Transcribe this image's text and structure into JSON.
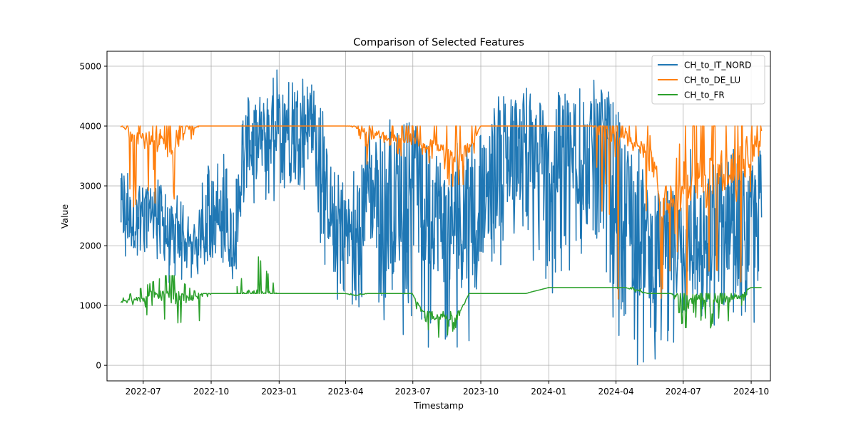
{
  "chart_data": {
    "type": "line",
    "title": "Comparison of Selected Features",
    "xlabel": "Timestamp",
    "ylabel": "Value",
    "x_tick_labels": [
      "2022-07",
      "2022-10",
      "2023-01",
      "2023-04",
      "2023-07",
      "2023-10",
      "2024-01",
      "2024-04",
      "2024-07",
      "2024-10"
    ],
    "x_ticks": [
      "2022-07-01",
      "2022-10-01",
      "2023-01-01",
      "2023-04-01",
      "2023-07-01",
      "2023-10-01",
      "2024-01-01",
      "2024-04-01",
      "2024-07-01",
      "2024-10-01"
    ],
    "xlim": [
      "2022-05-13",
      "2024-10-27"
    ],
    "ylim": [
      -260,
      5250
    ],
    "y_ticks": [
      0,
      1000,
      2000,
      3000,
      4000,
      5000
    ],
    "y_tick_labels": [
      "0",
      "1000",
      "2000",
      "3000",
      "4000",
      "5000"
    ],
    "grid": true,
    "legend_position": "upper right",
    "series": [
      {
        "name": "CH_to_IT_NORD",
        "color": "#1f77b4",
        "x": [
          "2022-06-01",
          "2022-06-15",
          "2022-07-01",
          "2022-07-15",
          "2022-08-01",
          "2022-08-15",
          "2022-09-01",
          "2022-09-15",
          "2022-10-01",
          "2022-10-15",
          "2022-11-01",
          "2022-11-15",
          "2022-12-01",
          "2022-12-15",
          "2023-01-01",
          "2023-01-15",
          "2023-02-01",
          "2023-02-15",
          "2023-03-01",
          "2023-03-15",
          "2023-04-01",
          "2023-04-15",
          "2023-05-01",
          "2023-05-15",
          "2023-06-01",
          "2023-06-15",
          "2023-07-01",
          "2023-07-15",
          "2023-08-01",
          "2023-08-15",
          "2023-09-01",
          "2023-09-15",
          "2023-10-01",
          "2023-10-15",
          "2023-11-01",
          "2023-11-15",
          "2023-12-01",
          "2023-12-15",
          "2024-01-01",
          "2024-01-15",
          "2024-02-01",
          "2024-02-15",
          "2024-03-01",
          "2024-03-15",
          "2024-04-01",
          "2024-04-15",
          "2024-05-01",
          "2024-05-15",
          "2024-06-01",
          "2024-06-15",
          "2024-07-01",
          "2024-07-15",
          "2024-08-01",
          "2024-08-15",
          "2024-09-01",
          "2024-09-15",
          "2024-10-01",
          "2024-10-15"
        ],
        "y": [
          2600,
          2400,
          2500,
          2700,
          2200,
          2100,
          2000,
          2200,
          2600,
          2300,
          2200,
          3500,
          3700,
          3800,
          4000,
          4200,
          4100,
          3900,
          3200,
          2500,
          2300,
          2100,
          3000,
          2700,
          2600,
          2800,
          3000,
          2600,
          2700,
          2300,
          2400,
          2200,
          2700,
          3000,
          3300,
          3600,
          3800,
          3300,
          3200,
          3600,
          3500,
          3400,
          3500,
          3700,
          3200,
          2600,
          2200,
          2000,
          1900,
          2100,
          2000,
          2300,
          2000,
          2300,
          2500,
          2400,
          2300,
          2500
        ],
        "y_min": [
          1800,
          1500,
          1800,
          2000,
          1200,
          1300,
          1400,
          1500,
          1800,
          1400,
          1300,
          2500,
          2600,
          2500,
          2800,
          2900,
          3000,
          2700,
          1800,
          1200,
          900,
          800,
          1300,
          900,
          500,
          400,
          700,
          200,
          0,
          200,
          300,
          400,
          900,
          1200,
          1800,
          2000,
          2300,
          1500,
          900,
          1400,
          1500,
          1800,
          1800,
          2000,
          400,
          0,
          0,
          0,
          0,
          0,
          300,
          800,
          500,
          600,
          700,
          700,
          500,
          0
        ],
        "y_max": [
          3600,
          3200,
          3100,
          3200,
          3000,
          2900,
          2500,
          2800,
          3700,
          3600,
          3300,
          4500,
          4600,
          4600,
          5000,
          4950,
          4900,
          4700,
          4300,
          3800,
          3000,
          3300,
          4100,
          3900,
          4300,
          4000,
          4100,
          3800,
          3600,
          3600,
          3900,
          3700,
          3900,
          4300,
          4700,
          4850,
          4800,
          4500,
          4500,
          4700,
          4600,
          4700,
          4800,
          4880,
          4400,
          3900,
          3700,
          3200,
          2900,
          3000,
          2900,
          3900,
          3500,
          3800,
          4000,
          3900,
          3700,
          4000
        ]
      },
      {
        "name": "CH_to_DE_LU",
        "color": "#ff7f0e",
        "x": [
          "2022-06-01",
          "2022-06-15",
          "2022-07-01",
          "2022-07-15",
          "2022-08-01",
          "2022-08-15",
          "2022-09-01",
          "2022-09-15",
          "2022-10-01",
          "2022-11-01",
          "2022-12-01",
          "2023-01-01",
          "2023-02-01",
          "2023-03-01",
          "2023-04-01",
          "2023-04-15",
          "2023-05-01",
          "2023-05-15",
          "2023-06-01",
          "2023-06-15",
          "2023-07-01",
          "2023-07-15",
          "2023-08-01",
          "2023-08-15",
          "2023-09-01",
          "2023-09-15",
          "2023-10-01",
          "2023-11-01",
          "2023-12-01",
          "2024-01-01",
          "2024-02-01",
          "2024-03-01",
          "2024-04-01",
          "2024-04-15",
          "2024-05-01",
          "2024-05-15",
          "2024-06-01",
          "2024-06-15",
          "2024-07-01",
          "2024-07-15",
          "2024-08-01",
          "2024-08-15",
          "2024-09-01",
          "2024-09-15",
          "2024-10-01",
          "2024-10-15"
        ],
        "y": [
          4000,
          3900,
          3800,
          3700,
          3700,
          3800,
          3950,
          4000,
          4000,
          4000,
          4000,
          4000,
          4000,
          4000,
          4000,
          4000,
          3900,
          3850,
          3800,
          3800,
          3800,
          3700,
          3700,
          3500,
          3500,
          3600,
          4000,
          4000,
          4000,
          4000,
          4000,
          4000,
          3950,
          3900,
          3600,
          3700,
          2700,
          2800,
          3000,
          3200,
          3000,
          3300,
          3200,
          3300,
          3600,
          3900
        ],
        "y_min": [
          4000,
          2600,
          2800,
          2500,
          1700,
          2300,
          3500,
          4000,
          4000,
          4000,
          4000,
          4000,
          4000,
          4000,
          4000,
          3900,
          3300,
          3400,
          3500,
          3500,
          3000,
          3500,
          3000,
          2900,
          3000,
          3000,
          4000,
          4000,
          4000,
          4000,
          4000,
          4000,
          0,
          3700,
          3000,
          2500,
          1000,
          1000,
          600,
          800,
          900,
          1200,
          1200,
          1200,
          1300,
          3700
        ],
        "y_max": [
          4000,
          4000,
          4000,
          4000,
          4000,
          4000,
          4000,
          4000,
          4000,
          4000,
          4000,
          4000,
          4000,
          4000,
          4000,
          4000,
          4000,
          4000,
          4000,
          4000,
          4000,
          4000,
          4000,
          4000,
          4000,
          4000,
          4000,
          4000,
          4000,
          4000,
          4000,
          4000,
          4000,
          4000,
          4000,
          4000,
          3000,
          3000,
          4000,
          4000,
          4000,
          4000,
          4000,
          4000,
          4000,
          4000
        ]
      },
      {
        "name": "CH_to_FR",
        "color": "#2ca02c",
        "x": [
          "2022-06-01",
          "2022-06-15",
          "2022-07-01",
          "2022-07-15",
          "2022-08-01",
          "2022-08-15",
          "2022-09-01",
          "2022-09-15",
          "2022-10-01",
          "2022-11-01",
          "2022-12-01",
          "2023-01-01",
          "2023-02-01",
          "2023-03-01",
          "2023-04-01",
          "2023-04-15",
          "2023-05-01",
          "2023-05-15",
          "2023-06-01",
          "2023-06-15",
          "2023-07-01",
          "2023-07-15",
          "2023-08-01",
          "2023-08-15",
          "2023-09-01",
          "2023-09-15",
          "2023-10-01",
          "2023-11-01",
          "2023-12-01",
          "2024-01-01",
          "2024-02-01",
          "2024-03-01",
          "2024-04-01",
          "2024-04-15",
          "2024-05-01",
          "2024-05-15",
          "2024-06-01",
          "2024-06-15",
          "2024-07-01",
          "2024-07-15",
          "2024-08-01",
          "2024-08-15",
          "2024-09-01",
          "2024-09-15",
          "2024-10-01",
          "2024-10-15"
        ],
        "y": [
          1050,
          1100,
          1100,
          1200,
          1150,
          1150,
          1100,
          1200,
          1200,
          1200,
          1200,
          1200,
          1200,
          1200,
          1200,
          1170,
          1200,
          1200,
          1200,
          1200,
          1200,
          900,
          800,
          800,
          800,
          1200,
          1200,
          1200,
          1200,
          1300,
          1300,
          1300,
          1300,
          1300,
          1250,
          1200,
          1200,
          1200,
          1150,
          1150,
          1150,
          1100,
          1100,
          1150,
          1300,
          1300
        ],
        "y_min": [
          1000,
          1000,
          800,
          900,
          700,
          450,
          900,
          450,
          1200,
          1200,
          1200,
          1200,
          1200,
          1200,
          1200,
          1150,
          1200,
          1200,
          1200,
          1200,
          1200,
          0,
          450,
          450,
          450,
          1200,
          1200,
          1200,
          1200,
          1300,
          1300,
          1300,
          1300,
          1300,
          1200,
          1200,
          1200,
          1200,
          500,
          800,
          700,
          500,
          700,
          900,
          1300,
          1300
        ],
        "y_max": [
          1100,
          1200,
          1300,
          1400,
          1500,
          1500,
          1300,
          1200,
          1200,
          1200,
          1900,
          1200,
          1200,
          1200,
          1200,
          1200,
          1200,
          1200,
          1200,
          1200,
          1200,
          900,
          900,
          900,
          900,
          1200,
          1200,
          1200,
          1200,
          1300,
          1300,
          1300,
          1300,
          1300,
          1300,
          1200,
          1200,
          1200,
          1200,
          1200,
          1200,
          1200,
          1200,
          1200,
          1300,
          1300
        ]
      }
    ]
  }
}
